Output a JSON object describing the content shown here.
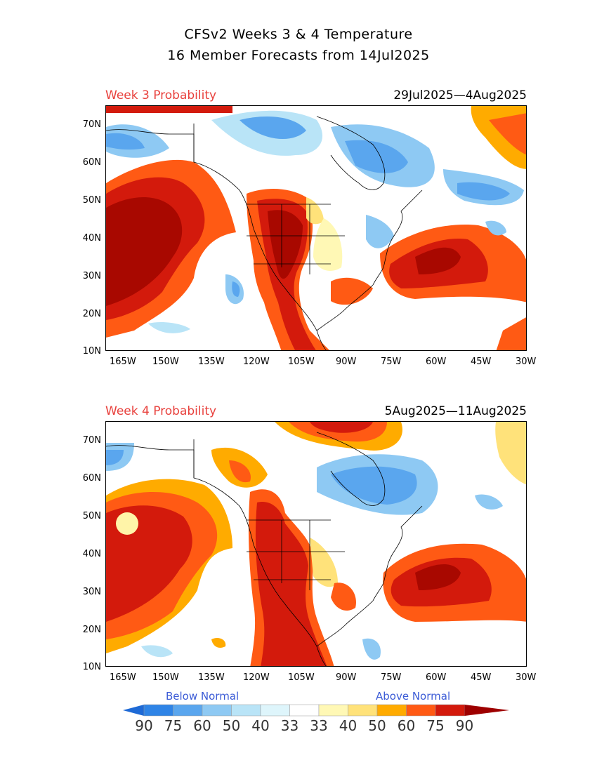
{
  "title_line1": "CFSv2 Weeks 3 & 4 Temperature",
  "title_line2": "16 Member Forecasts from 14Jul2025",
  "panels": [
    {
      "label": "Week 3 Probability",
      "dates": "29Jul2025—4Aug2025"
    },
    {
      "label": "Week 4 Probability",
      "dates": "5Aug2025—11Aug2025"
    }
  ],
  "x_ticks": [
    "165W",
    "150W",
    "135W",
    "120W",
    "105W",
    "90W",
    "75W",
    "60W",
    "45W",
    "30W"
  ],
  "y_ticks": [
    "70N",
    "60N",
    "50N",
    "40N",
    "30N",
    "20N",
    "10N"
  ],
  "legend": {
    "below_label": "Below Normal",
    "above_label": "Above Normal",
    "numbers": [
      "90",
      "75",
      "60",
      "50",
      "40",
      "33",
      "33",
      "40",
      "50",
      "60",
      "75",
      "90"
    ],
    "colors": [
      "#1e6ad6",
      "#2f84e6",
      "#5aa6ee",
      "#8ec9f3",
      "#b9e4f7",
      "#def5fb",
      "#ffffff",
      "#fff8b5",
      "#ffe27a",
      "#ffab00",
      "#ff5a14",
      "#d31a0c",
      "#9e0000"
    ]
  },
  "palette": {
    "blue_dark": "#2f84e6",
    "blue_mid": "#5aa6ee",
    "blue_light": "#8ec9f3",
    "blue_pale": "#b9e4f7",
    "yellow": "#fff4a8",
    "gold": "#ffe27a",
    "orange": "#ffab00",
    "red_orange": "#ff5a14",
    "red": "#d31a0c",
    "dark_red": "#a80800"
  }
}
